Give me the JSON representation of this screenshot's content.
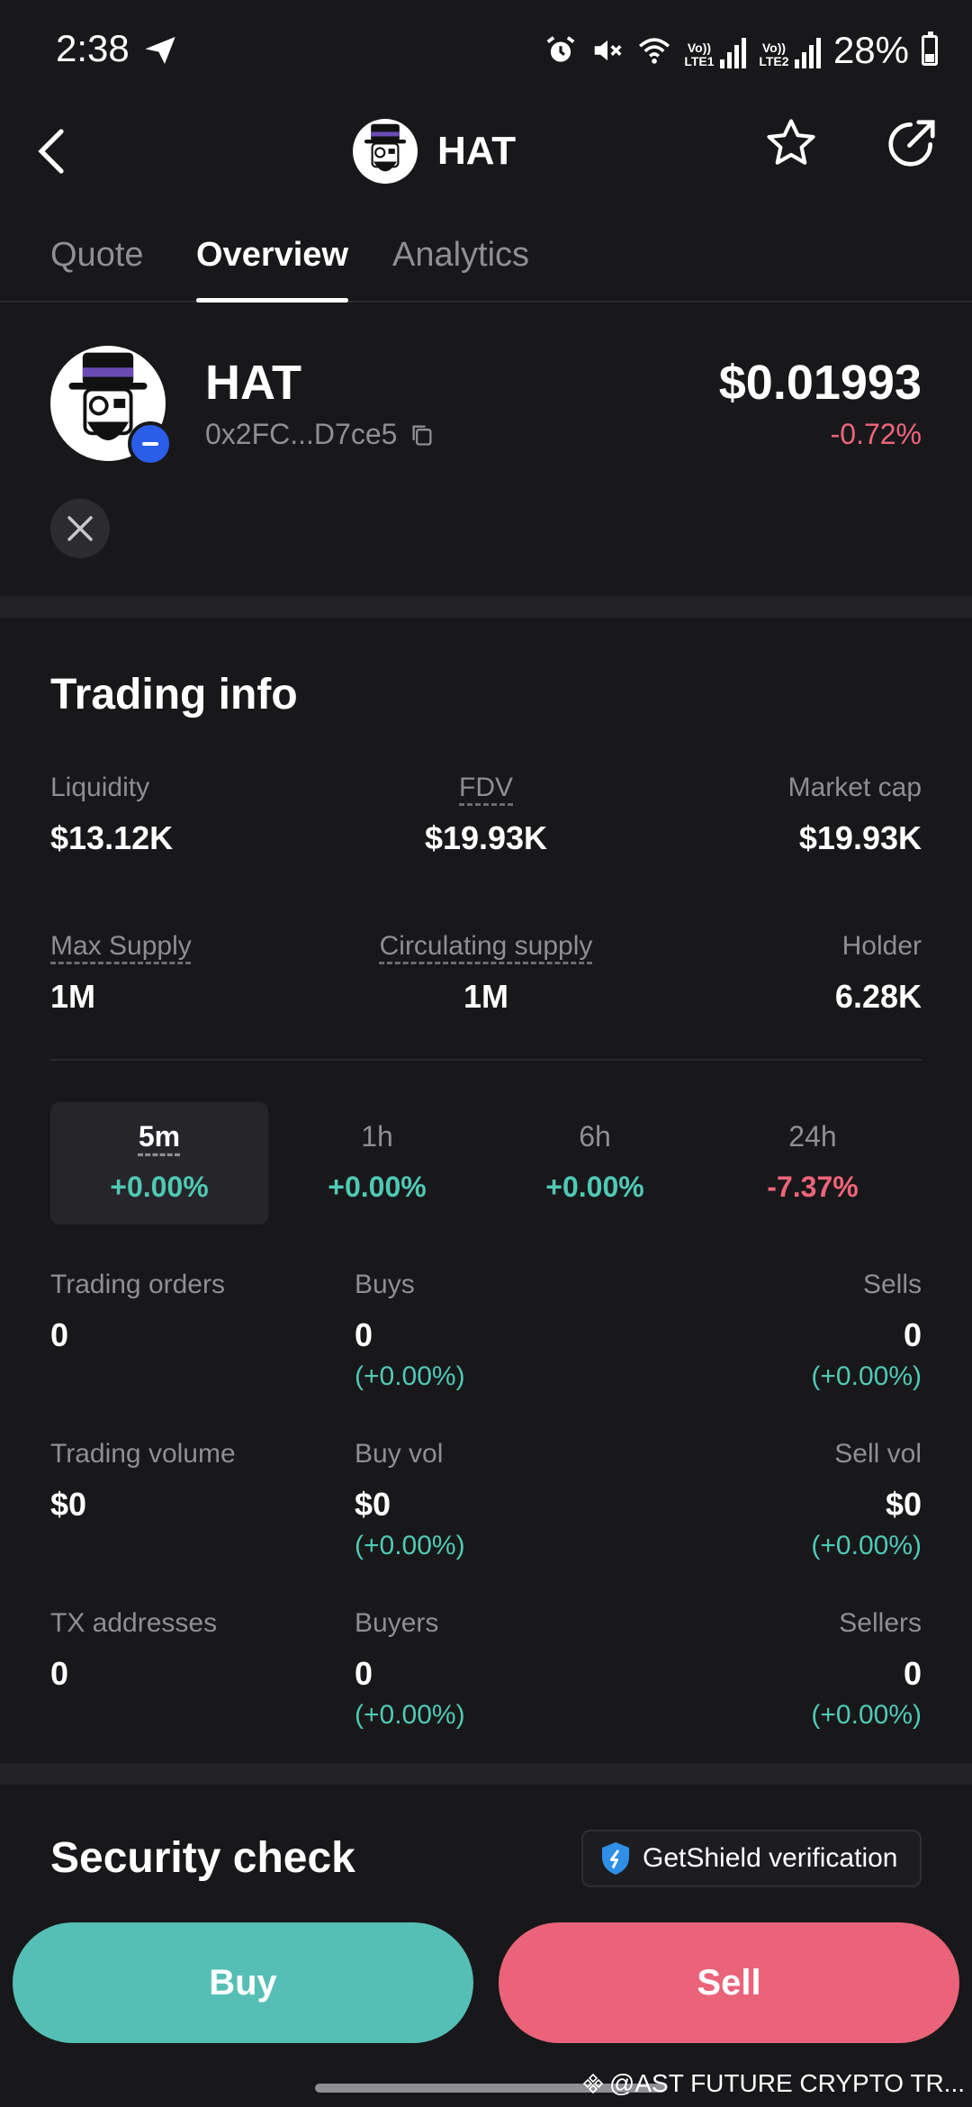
{
  "status_bar": {
    "time": "2:38",
    "sim1_label": "Vo)) LTE1",
    "sim2_label": "Vo)) LTE2",
    "battery": "28%",
    "icons": [
      "telegram-send-icon",
      "alarm-icon",
      "mute-icon",
      "wifi-icon",
      "signal-icon",
      "battery-icon"
    ]
  },
  "header": {
    "title": "HAT",
    "icons": [
      "back-arrow-icon",
      "star-icon",
      "share-icon"
    ]
  },
  "tabs": [
    {
      "label": "Quote"
    },
    {
      "label": "Overview",
      "active": true
    },
    {
      "label": "Analytics"
    }
  ],
  "token": {
    "name": "HAT",
    "address": "0x2FC...D7ce5",
    "price": "$0.01993",
    "change": "-0.72%",
    "social": "x-icon"
  },
  "trading_info": {
    "title": "Trading info",
    "stats_row1": [
      {
        "label": "Liquidity",
        "value": "$13.12K"
      },
      {
        "label": "FDV",
        "value": "$19.93K"
      },
      {
        "label": "Market cap",
        "value": "$19.93K"
      }
    ],
    "stats_row2": [
      {
        "label": "Max Supply",
        "value": "1M"
      },
      {
        "label": "Circulating supply",
        "value": "1M"
      },
      {
        "label": "Holder",
        "value": "6.28K"
      }
    ],
    "periods": [
      {
        "label": "5m",
        "change": "+0.00%",
        "active": true
      },
      {
        "label": "1h",
        "change": "+0.00%"
      },
      {
        "label": "6h",
        "change": "+0.00%"
      },
      {
        "label": "24h",
        "change": "-7.37%"
      }
    ],
    "orders": {
      "total_label": "Trading orders",
      "total_value": "0",
      "buys_label": "Buys",
      "buys_value": "0",
      "buys_change": "(+0.00%)",
      "sells_label": "Sells",
      "sells_value": "0",
      "sells_change": "(+0.00%)"
    },
    "volume": {
      "total_label": "Trading volume",
      "total_value": "$0",
      "buy_label": "Buy vol",
      "buy_value": "$0",
      "buy_change": "(+0.00%)",
      "sell_label": "Sell vol",
      "sell_value": "$0",
      "sell_change": "(+0.00%)"
    },
    "addresses": {
      "total_label": "TX addresses",
      "total_value": "0",
      "buyers_label": "Buyers",
      "buyers_value": "0",
      "buyers_change": "(+0.00%)",
      "sellers_label": "Sellers",
      "sellers_value": "0",
      "sellers_change": "(+0.00%)"
    }
  },
  "security": {
    "title": "Security check",
    "shield_label": "GetShield verification"
  },
  "actions": {
    "buy_label": "Buy",
    "sell_label": "Sell"
  },
  "watermark": "@AST FUTURE CRYPTO TR...",
  "colors": {
    "background": "#18181b",
    "positive": "#4fc9b4",
    "negative": "#f0657a",
    "buy": "#55bfb5",
    "sell": "#ea6379"
  }
}
